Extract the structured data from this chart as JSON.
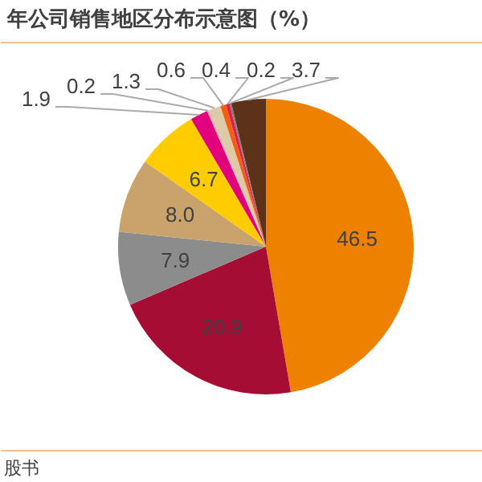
{
  "chart_data": {
    "type": "pie",
    "title": "年公司销售地区分布示意图（%）",
    "categories": [
      null,
      null,
      null,
      null,
      null,
      null,
      null,
      null,
      null,
      null,
      null,
      null
    ],
    "values": [
      46.5,
      20.9,
      7.9,
      8.0,
      6.7,
      1.9,
      0.2,
      1.3,
      0.6,
      0.4,
      0.2,
      3.7
    ],
    "colors": [
      "#ee8100",
      "#a50d35",
      "#8c8c8c",
      "#c9a26c",
      "#ffcc00",
      "#e3007f",
      "#f4a6b0",
      "#dccaa9",
      "#f06010",
      "#e0204a",
      "#7f7f7f",
      "#5c3318"
    ],
    "value_labels": [
      "46.5",
      "20.9",
      "7.9",
      "8.0",
      "6.7",
      "1.9",
      "0.2",
      "1.3",
      "0.6",
      "0.4",
      "0.2",
      "3.7"
    ],
    "annotations": [
      "股书"
    ]
  }
}
